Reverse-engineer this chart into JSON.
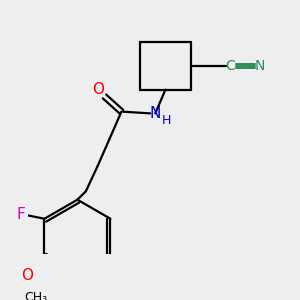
{
  "background_color": "#eeeeee",
  "line_color": "#000000",
  "bond_width": 1.6,
  "figsize": [
    3.0,
    3.0
  ],
  "dpi": 100,
  "colors": {
    "O": "#ff0000",
    "N": "#0000cc",
    "F": "#cc00cc",
    "CN": "#2e8b57",
    "C": "#000000"
  }
}
